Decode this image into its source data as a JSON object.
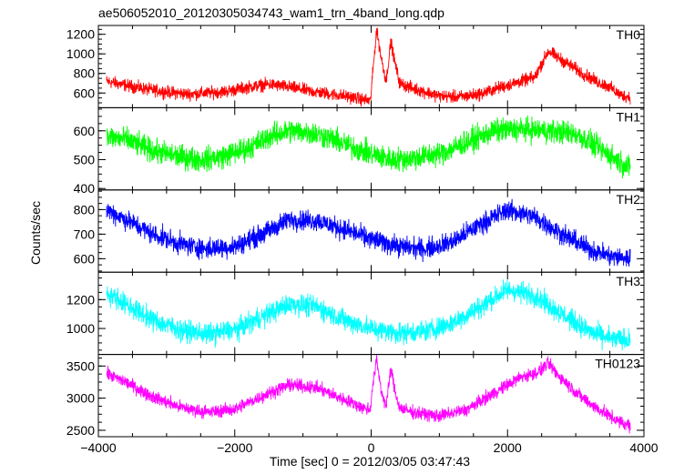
{
  "chart_data": {
    "type": "line",
    "title": "ae506052010_20120305034743_wam1_trn_4band_long.qdp",
    "xlabel": "Time [sec] 0 = 2012/03/05 03:47:43",
    "ylabel": "Counts/sec",
    "xlim": [
      -4000,
      4000
    ],
    "x_ticks": [
      -4000,
      -2000,
      0,
      2000,
      4000
    ],
    "x_tick_labels": [
      "−4000",
      "−2000",
      "0",
      "2000",
      "4000"
    ],
    "panels": [
      {
        "name": "TH0",
        "color": "#ff0000",
        "ylim": [
          450,
          1290
        ],
        "y_ticks": [
          600,
          800,
          1000,
          1200
        ],
        "y_tick_labels": [
          "600",
          "800",
          "1000",
          "1200"
        ],
        "x": [
          -3880,
          -3600,
          -3300,
          -3000,
          -2700,
          -2400,
          -2100,
          -1800,
          -1500,
          -1200,
          -900,
          -600,
          -300,
          -100,
          -10,
          10,
          80,
          150,
          220,
          290,
          350,
          420,
          600,
          800,
          1000,
          1300,
          1600,
          1900,
          2200,
          2400,
          2500,
          2600,
          2700,
          2900,
          3100,
          3300,
          3500,
          3650,
          3800
        ],
        "values": [
          720,
          680,
          640,
          610,
          590,
          600,
          620,
          660,
          690,
          660,
          620,
          590,
          560,
          530,
          520,
          700,
          1250,
          950,
          720,
          1130,
          900,
          700,
          650,
          610,
          570,
          560,
          590,
          660,
          720,
          760,
          900,
          1030,
          980,
          890,
          800,
          720,
          660,
          580,
          560
        ],
        "noise": 70
      },
      {
        "name": "TH1",
        "color": "#00ff00",
        "ylim": [
          395,
          680
        ],
        "y_ticks": [
          400,
          500,
          600
        ],
        "y_tick_labels": [
          "400",
          "500",
          "600"
        ],
        "x": [
          -3880,
          -3600,
          -3200,
          -2800,
          -2500,
          -2200,
          -1800,
          -1500,
          -1200,
          -900,
          -600,
          -300,
          0,
          300,
          600,
          1000,
          1400,
          1800,
          2200,
          2600,
          3000,
          3400,
          3800
        ],
        "values": [
          580,
          570,
          530,
          510,
          500,
          510,
          540,
          580,
          600,
          595,
          575,
          545,
          520,
          500,
          505,
          520,
          560,
          600,
          605,
          600,
          590,
          530,
          470
        ],
        "noise": 45
      },
      {
        "name": "TH2",
        "color": "#0000ff",
        "ylim": [
          545,
          880
        ],
        "y_ticks": [
          600,
          700,
          800
        ],
        "y_tick_labels": [
          "600",
          "700",
          "800"
        ],
        "x": [
          -3880,
          -3600,
          -3200,
          -2800,
          -2400,
          -2000,
          -1600,
          -1200,
          -800,
          -400,
          0,
          400,
          800,
          1200,
          1600,
          2000,
          2400,
          2800,
          3200,
          3500,
          3800
        ],
        "values": [
          800,
          760,
          700,
          660,
          640,
          650,
          700,
          760,
          755,
          720,
          680,
          650,
          640,
          670,
          740,
          800,
          770,
          700,
          640,
          610,
          600
        ],
        "noise": 45
      },
      {
        "name": "TH3",
        "color": "#00ffff",
        "ylim": [
          820,
          1390
        ],
        "y_ticks": [
          1000,
          1200
        ],
        "y_tick_labels": [
          "1000",
          "1200"
        ],
        "x": [
          -3880,
          -3600,
          -3200,
          -2800,
          -2400,
          -2000,
          -1600,
          -1200,
          -800,
          -400,
          0,
          400,
          800,
          1200,
          1600,
          2000,
          2400,
          2800,
          3200,
          3500,
          3800
        ],
        "values": [
          1250,
          1170,
          1060,
          990,
          960,
          990,
          1080,
          1170,
          1150,
          1060,
          1000,
          970,
          980,
          1040,
          1150,
          1270,
          1230,
          1100,
          980,
          930,
          920
        ],
        "noise": 80
      },
      {
        "name": "TH0123",
        "color": "#ff00ff",
        "ylim": [
          2400,
          3680
        ],
        "y_ticks": [
          2500,
          3000,
          3500
        ],
        "y_tick_labels": [
          "2500",
          "3000",
          "3500"
        ],
        "x": [
          -3880,
          -3600,
          -3200,
          -2800,
          -2400,
          -2000,
          -1600,
          -1200,
          -800,
          -400,
          -100,
          -10,
          10,
          80,
          150,
          220,
          290,
          350,
          420,
          600,
          1000,
          1400,
          1800,
          2200,
          2400,
          2500,
          2600,
          2700,
          2900,
          3100,
          3300,
          3500,
          3650,
          3800
        ],
        "values": [
          3380,
          3250,
          3020,
          2860,
          2780,
          2830,
          3030,
          3210,
          3160,
          2980,
          2840,
          2830,
          3100,
          3600,
          3100,
          2880,
          3450,
          3100,
          2850,
          2780,
          2720,
          2820,
          3080,
          3330,
          3380,
          3450,
          3550,
          3400,
          3200,
          3000,
          2850,
          2720,
          2620,
          2580
        ],
        "noise": 110
      }
    ]
  }
}
